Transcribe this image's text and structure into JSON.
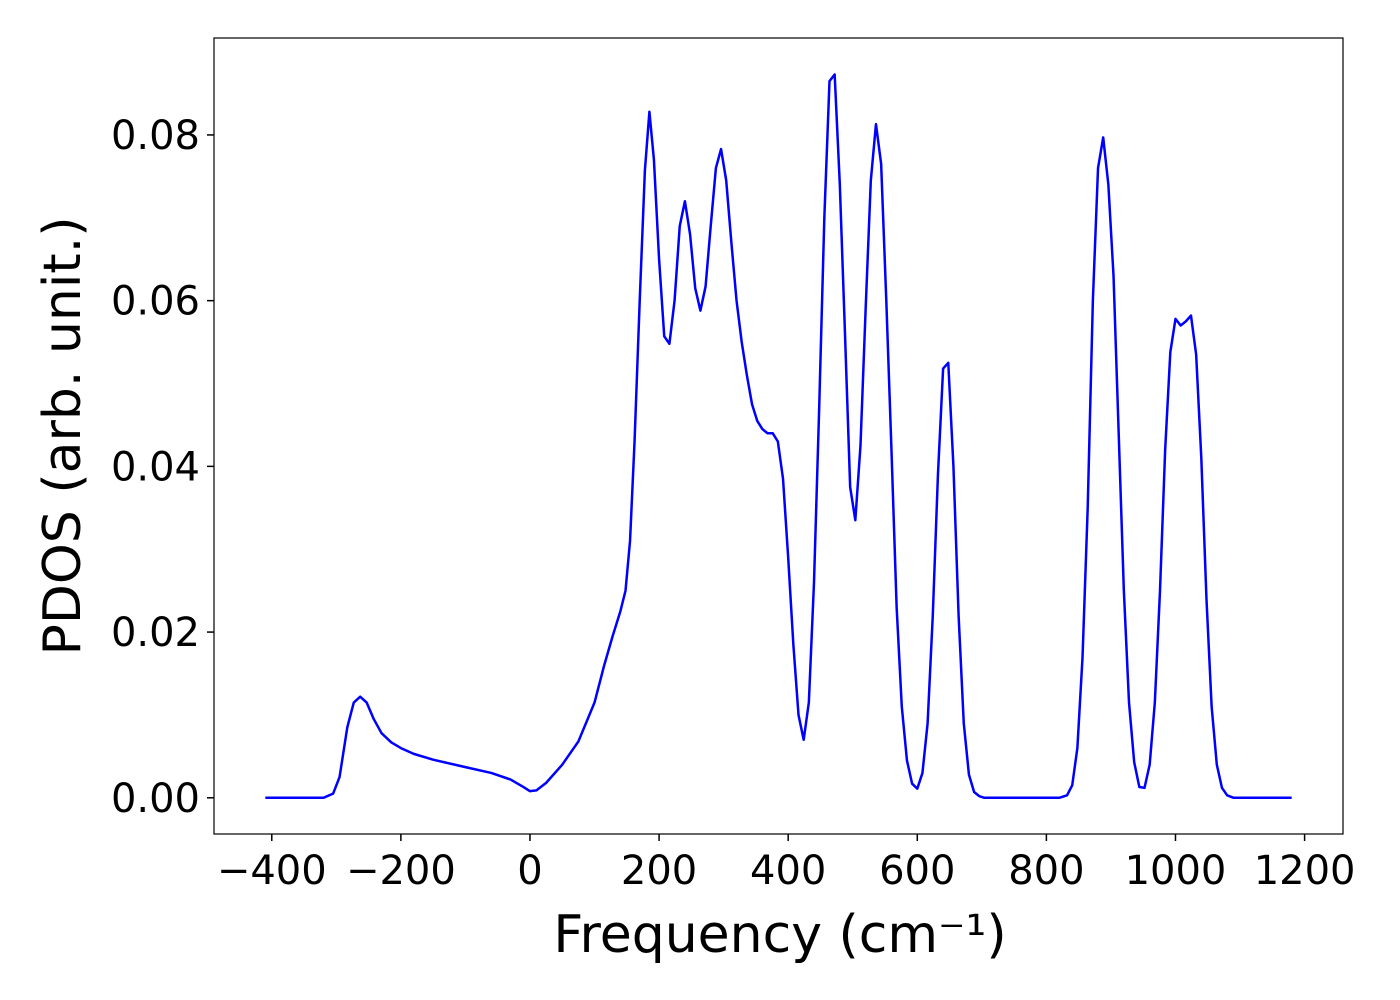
{
  "chart_data": {
    "type": "line",
    "x_label": "Frequency (cm⁻¹)",
    "y_label": "PDOS (arb. unit.)",
    "xlim": [
      -489.5,
      1259.5
    ],
    "ylim": [
      -0.00437,
      0.0917
    ],
    "xticks": [
      {
        "value": -400,
        "label": "−400"
      },
      {
        "value": -200,
        "label": "−200"
      },
      0,
      200,
      400,
      600,
      800,
      1000,
      1200
    ],
    "yticks": [
      {
        "value": 0,
        "label": "0.00"
      },
      0.02,
      0.04,
      0.06,
      0.08
    ],
    "grid": false,
    "x": [
      -410,
      -320,
      -305,
      -295,
      -283,
      -273,
      -263,
      -253,
      -242,
      -230,
      -215,
      -200,
      -180,
      -150,
      -100,
      -60,
      -30,
      -10,
      0,
      10,
      25,
      50,
      75,
      100,
      115,
      128,
      140,
      148,
      155,
      162,
      170,
      178,
      185,
      192,
      200,
      208,
      216,
      224,
      232,
      240,
      248,
      256,
      264,
      272,
      280,
      288,
      296,
      304,
      312,
      320,
      328,
      336,
      344,
      352,
      360,
      368,
      376,
      384,
      392,
      400,
      408,
      416,
      424,
      432,
      440,
      448,
      456,
      464,
      472,
      480,
      488,
      496,
      504,
      512,
      520,
      528,
      536,
      544,
      552,
      560,
      568,
      576,
      584,
      592,
      600,
      608,
      616,
      624,
      632,
      640,
      648,
      656,
      664,
      672,
      680,
      688,
      696,
      704,
      820,
      832,
      840,
      848,
      856,
      864,
      872,
      880,
      888,
      896,
      904,
      912,
      920,
      928,
      936,
      944,
      952,
      960,
      968,
      976,
      984,
      992,
      1000,
      1008,
      1016,
      1024,
      1032,
      1040,
      1048,
      1056,
      1064,
      1072,
      1080,
      1090,
      1180
    ],
    "series": [
      {
        "name": "PDOS",
        "color": "#0000ff",
        "values": [
          0,
          0,
          0.0005,
          0.0025,
          0.0085,
          0.0115,
          0.0122,
          0.0115,
          0.0095,
          0.0078,
          0.0067,
          0.006,
          0.0053,
          0.0046,
          0.0037,
          0.003,
          0.0022,
          0.0013,
          0.0008,
          0.0009,
          0.0018,
          0.004,
          0.0068,
          0.0115,
          0.016,
          0.0195,
          0.0225,
          0.025,
          0.031,
          0.043,
          0.06,
          0.0757,
          0.0828,
          0.077,
          0.065,
          0.0557,
          0.0548,
          0.06,
          0.069,
          0.072,
          0.068,
          0.0615,
          0.0588,
          0.0617,
          0.069,
          0.076,
          0.0783,
          0.0745,
          0.067,
          0.06,
          0.055,
          0.051,
          0.0475,
          0.0455,
          0.0445,
          0.044,
          0.044,
          0.043,
          0.0385,
          0.029,
          0.0185,
          0.01,
          0.007,
          0.0115,
          0.026,
          0.047,
          0.07,
          0.0865,
          0.0873,
          0.074,
          0.056,
          0.0375,
          0.0335,
          0.0425,
          0.059,
          0.0745,
          0.0813,
          0.0765,
          0.06,
          0.042,
          0.023,
          0.011,
          0.0045,
          0.0017,
          0.0011,
          0.003,
          0.009,
          0.022,
          0.039,
          0.0518,
          0.0525,
          0.04,
          0.022,
          0.009,
          0.0028,
          0.0007,
          0.0002,
          0,
          0,
          0.0003,
          0.0015,
          0.006,
          0.017,
          0.035,
          0.06,
          0.076,
          0.0797,
          0.074,
          0.063,
          0.044,
          0.025,
          0.0115,
          0.0043,
          0.0013,
          0.0012,
          0.004,
          0.0115,
          0.025,
          0.042,
          0.0538,
          0.0578,
          0.057,
          0.0575,
          0.0582,
          0.0535,
          0.041,
          0.024,
          0.011,
          0.004,
          0.0012,
          0.0003,
          0,
          0
        ]
      }
    ]
  }
}
